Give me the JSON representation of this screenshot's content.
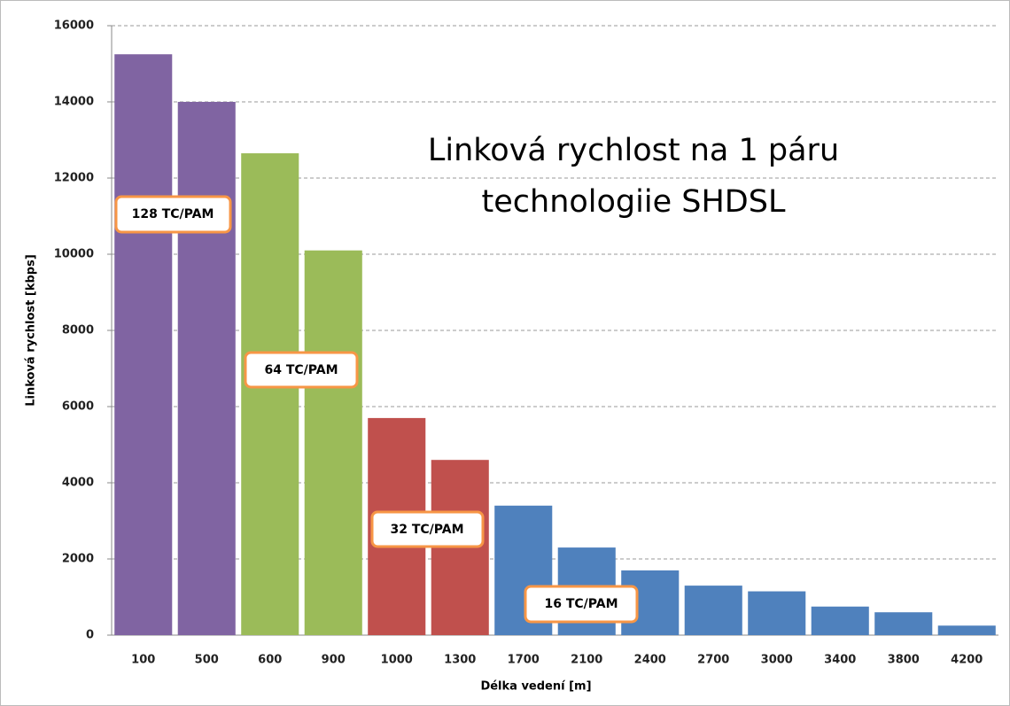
{
  "chart_data": {
    "type": "bar",
    "title": [
      "Linková rychlost na 1 páru",
      "technologiie SHDSL"
    ],
    "x_label": "Délka vedení  [m]",
    "y_label": "Linková rychlost [kbps]",
    "categories": [
      "100",
      "500",
      "600",
      "900",
      "1000",
      "1300",
      "1700",
      "2100",
      "2400",
      "2700",
      "3000",
      "3400",
      "3800",
      "4200"
    ],
    "values": [
      15250,
      14000,
      12650,
      10100,
      5700,
      4600,
      3400,
      2300,
      1700,
      1300,
      1150,
      750,
      600,
      250
    ],
    "colors": [
      "#8064a2",
      "#8064a2",
      "#9bbb59",
      "#9bbb59",
      "#c0504d",
      "#c0504d",
      "#4f81bd",
      "#4f81bd",
      "#4f81bd",
      "#4f81bd",
      "#4f81bd",
      "#4f81bd",
      "#4f81bd",
      "#4f81bd"
    ],
    "annotations": [
      "128 TC/PAM",
      "64 TC/PAM",
      "32 TC/PAM",
      "16 TC/PAM"
    ],
    "ylim": [
      0,
      16000
    ],
    "yticks": [
      0,
      2000,
      4000,
      6000,
      8000,
      10000,
      12000,
      14000,
      16000
    ],
    "grid": true
  }
}
